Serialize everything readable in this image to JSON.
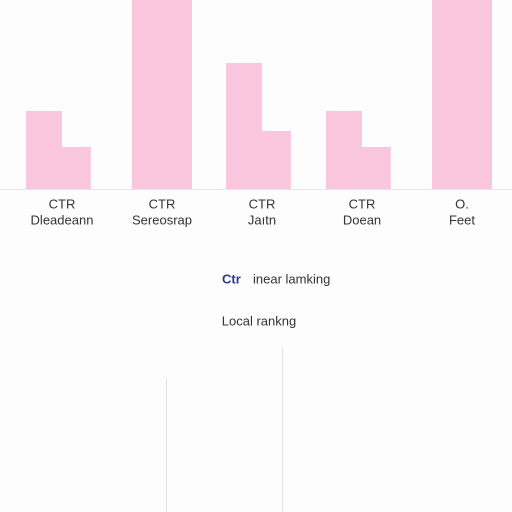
{
  "chart_data": {
    "type": "bar",
    "categories": [
      [
        "CTR",
        "Dleadeann"
      ],
      [
        "CTR",
        "Sereosrap"
      ],
      [
        "CTR",
        "Jaıtn"
      ],
      [
        "CTR",
        "Doean"
      ],
      [
        "O.",
        "Feet"
      ]
    ],
    "series": [
      {
        "color": "#f9c6de",
        "values": [
          78,
          189,
          126,
          78,
          189
        ]
      },
      {
        "color": "#f9c6de",
        "values": [
          42,
          null,
          58,
          42,
          null
        ]
      }
    ],
    "ylim": [
      0,
      189
    ],
    "annotations": [
      "Ctr",
      "inear lamking",
      "Local rankng"
    ]
  }
}
